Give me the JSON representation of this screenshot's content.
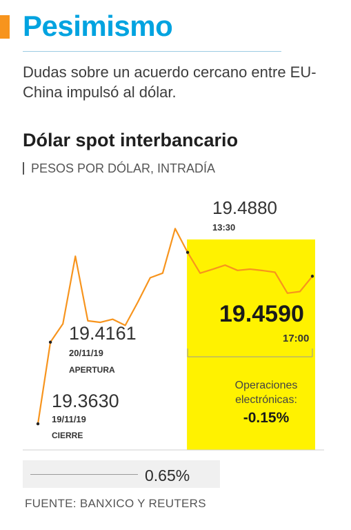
{
  "header": {
    "title": "Pesimismo",
    "subtitle": "Dudas sobre un acuerdo cercano entre EU-China impulsó al dólar."
  },
  "colors": {
    "accent": "#f7941d",
    "title": "#00a3e0",
    "line": "#f7941d",
    "highlight": "#fff200"
  },
  "chart_data": {
    "type": "line",
    "title": "Dólar spot interbancario",
    "subtitle": "PESOS POR DÓLAR, INTRADÍA",
    "x": [
      0,
      1,
      2,
      3,
      4,
      5,
      6,
      7,
      8,
      9,
      10,
      11,
      12,
      13,
      14,
      15,
      16,
      17,
      18,
      19,
      20,
      21,
      22
    ],
    "values": [
      19.363,
      19.4161,
      19.428,
      19.472,
      19.43,
      19.429,
      19.431,
      19.427,
      19.442,
      19.458,
      19.461,
      19.49,
      19.4745,
      19.461,
      19.4635,
      19.4662,
      19.4628,
      19.4636,
      19.4627,
      19.4616,
      19.448,
      19.449,
      19.459
    ],
    "ylim": [
      19.346,
      19.504
    ],
    "annotations": [
      {
        "value": "19.3630",
        "date": "19/11/19",
        "label": "CIERRE"
      },
      {
        "value": "19.4161",
        "date": "20/11/19",
        "label": "APERTURA"
      },
      {
        "value": "19.4880",
        "time": "13:30"
      },
      {
        "value": "19.4590",
        "time": "17:00"
      }
    ],
    "highlight": {
      "text_line1": "Operaciones",
      "text_line2": "electrónicas:",
      "change": "-0.15%"
    },
    "grid": false
  },
  "footer": {
    "bar_value": "0.65%",
    "source": "FUENTE: BANXICO Y  REUTERS"
  }
}
